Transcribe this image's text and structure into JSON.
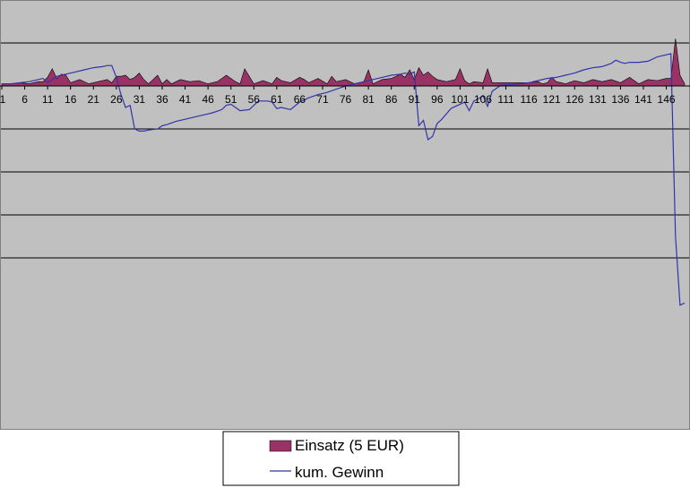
{
  "colors": {
    "plot_background": "#c0c0c0",
    "gridline": "#000000",
    "einsatz_fill": "#993366",
    "gewinn_line": "#3333aa"
  },
  "chart_data": {
    "type": "area",
    "grid": true,
    "legend_position": "bottom",
    "ylim": [
      -16,
      4
    ],
    "y_gridlines": [
      4,
      2,
      -2,
      -4,
      -6,
      -8
    ],
    "y_ticks_labeled": false,
    "x_range": [
      1,
      150
    ],
    "x_tick_labels": [
      "1",
      "6",
      "11",
      "16",
      "21",
      "26",
      "31",
      "36",
      "41",
      "46",
      "51",
      "56",
      "61",
      "66",
      "71",
      "76",
      "81",
      "86",
      "91",
      "96",
      "101",
      "106",
      "111",
      "116",
      "121",
      "126",
      "131",
      "136",
      "141",
      "146"
    ],
    "x_tick_values": [
      1,
      6,
      11,
      16,
      21,
      26,
      31,
      36,
      41,
      46,
      51,
      56,
      61,
      66,
      71,
      76,
      81,
      86,
      91,
      96,
      101,
      106,
      111,
      116,
      121,
      126,
      131,
      136,
      141,
      146
    ],
    "series": [
      {
        "name": "Einsatz (5 EUR)",
        "type": "area",
        "x": [
          1,
          3,
          5,
          7,
          9,
          10,
          11,
          12,
          13,
          14,
          15,
          16,
          18,
          20,
          22,
          24,
          25,
          26,
          27,
          28,
          29,
          30,
          31,
          32,
          33,
          34,
          35,
          36,
          37,
          38,
          40,
          42,
          44,
          46,
          48,
          50,
          52,
          53,
          54,
          56,
          58,
          60,
          61,
          62,
          64,
          66,
          67,
          68,
          70,
          72,
          73,
          74,
          76,
          78,
          80,
          81,
          82,
          84,
          86,
          88,
          89,
          90,
          91,
          92,
          93,
          94,
          95,
          96,
          98,
          100,
          101,
          102,
          103,
          104,
          106,
          107,
          108,
          110,
          112,
          114,
          116,
          118,
          119,
          120,
          121,
          122,
          124,
          126,
          128,
          130,
          132,
          134,
          136,
          138,
          140,
          142,
          144,
          146,
          147,
          148,
          149,
          150
        ],
        "values": [
          0.1,
          0.1,
          0.15,
          0.1,
          0.2,
          0.2,
          0.4,
          0.8,
          0.35,
          0.55,
          0.5,
          0.15,
          0.3,
          0.1,
          0.2,
          0.3,
          0.15,
          0.45,
          0.45,
          0.5,
          0.3,
          0.4,
          0.6,
          0.3,
          0.1,
          0.3,
          0.5,
          0.1,
          0.3,
          0.1,
          0.3,
          0.2,
          0.25,
          0.1,
          0.2,
          0.5,
          0.2,
          0.1,
          0.8,
          0.1,
          0.25,
          0.1,
          0.4,
          0.25,
          0.15,
          0.4,
          0.3,
          0.15,
          0.35,
          0.1,
          0.45,
          0.2,
          0.3,
          0.1,
          0.2,
          0.75,
          0.1,
          0.3,
          0.35,
          0.55,
          0.4,
          0.75,
          0.3,
          0.85,
          0.5,
          0.65,
          0.45,
          0.3,
          0.2,
          0.3,
          0.8,
          0.25,
          0.1,
          0.2,
          0.15,
          0.8,
          0.15,
          0.15,
          0.15,
          0.15,
          0.15,
          0.2,
          0.1,
          0.15,
          0.4,
          0.2,
          0.1,
          0.25,
          0.15,
          0.3,
          0.2,
          0.3,
          0.15,
          0.4,
          0.1,
          0.3,
          0.25,
          0.35,
          0.35,
          2.2,
          0.5,
          0.1
        ]
      },
      {
        "name": "kum. Gewinn",
        "type": "line",
        "x": [
          1,
          3,
          5,
          7,
          9,
          10,
          11,
          13,
          15,
          17,
          19,
          21,
          23,
          24,
          25,
          26,
          27,
          28,
          29,
          30,
          31,
          32,
          33,
          35,
          36,
          37,
          39,
          41,
          44,
          47,
          49,
          50,
          51,
          53,
          55,
          57,
          59,
          60,
          61,
          62,
          64,
          66,
          68,
          70,
          72,
          74,
          76,
          78,
          80,
          82,
          84,
          86,
          88,
          89,
          90,
          91,
          92,
          93,
          94,
          95,
          96,
          97,
          99,
          101,
          102,
          103,
          104,
          105,
          106,
          107,
          108,
          110,
          112,
          114,
          116,
          118,
          120,
          122,
          124,
          126,
          128,
          130,
          132,
          134,
          135,
          136,
          137,
          138,
          140,
          142,
          144,
          146,
          147,
          148,
          149,
          150
        ],
        "values": [
          0.1,
          0.1,
          0.15,
          0.2,
          0.3,
          0.35,
          0.15,
          0.45,
          0.55,
          0.65,
          0.75,
          0.85,
          0.9,
          0.95,
          0.95,
          0.4,
          -0.4,
          -1.0,
          -0.9,
          -2.0,
          -2.1,
          -2.1,
          -2.05,
          -2.0,
          -1.85,
          -1.8,
          -1.65,
          -1.55,
          -1.4,
          -1.25,
          -1.1,
          -0.9,
          -0.85,
          -1.15,
          -1.1,
          -0.7,
          -0.7,
          -0.75,
          -1.05,
          -1.0,
          -1.1,
          -0.75,
          -0.55,
          -0.4,
          -0.3,
          -0.15,
          0.0,
          0.1,
          0.2,
          0.3,
          0.4,
          0.5,
          0.55,
          0.6,
          0.55,
          0.65,
          -1.85,
          -1.6,
          -2.5,
          -2.35,
          -1.75,
          -1.55,
          -1.05,
          -0.85,
          -0.75,
          -1.15,
          -0.7,
          -0.6,
          -0.45,
          -0.95,
          -0.25,
          0.05,
          0.05,
          0.1,
          0.15,
          0.25,
          0.35,
          0.4,
          0.5,
          0.6,
          0.75,
          0.85,
          0.9,
          1.05,
          1.2,
          1.1,
          1.05,
          1.1,
          1.1,
          1.15,
          1.35,
          1.45,
          1.5,
          -7.0,
          -10.2,
          -10.1
        ]
      }
    ]
  }
}
